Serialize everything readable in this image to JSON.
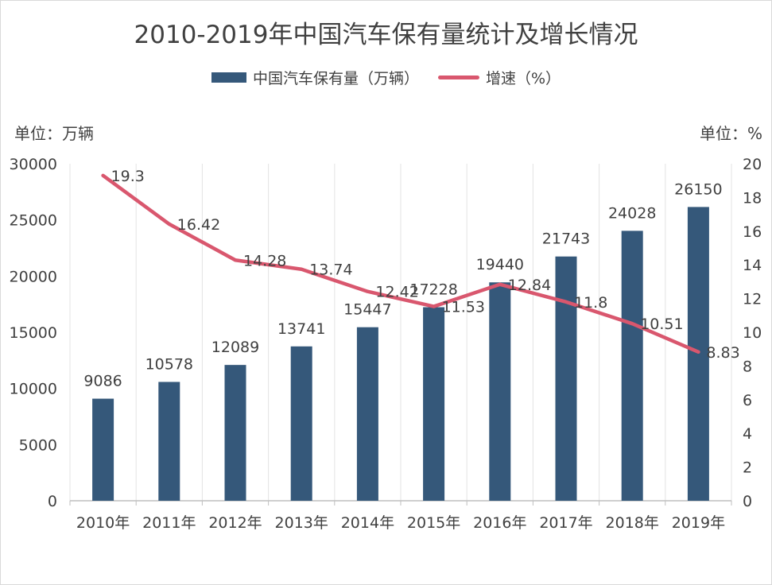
{
  "chart_data": {
    "type": "bar",
    "title": "2010-2019年中国汽车保有量统计及增长情况",
    "categories": [
      "2010年",
      "2011年",
      "2012年",
      "2013年",
      "2014年",
      "2015年",
      "2016年",
      "2017年",
      "2018年",
      "2019年"
    ],
    "series": [
      {
        "name": "中国汽车保有量（万辆）",
        "type": "bar",
        "axis": "left",
        "color": "#35587a",
        "values": [
          9086,
          10578,
          12089,
          13741,
          15447,
          17228,
          19440,
          21743,
          24028,
          26150
        ]
      },
      {
        "name": "增速（%）",
        "type": "line",
        "axis": "right",
        "color": "#d9576e",
        "values": [
          19.3,
          16.42,
          14.28,
          13.74,
          12.42,
          11.53,
          12.84,
          11.8,
          10.51,
          8.83
        ]
      }
    ],
    "left_axis": {
      "label": "单位：万辆",
      "min": 0,
      "max": 30000,
      "step": 5000,
      "ticks": [
        "0",
        "5000",
        "10000",
        "15000",
        "20000",
        "25000",
        "30000"
      ]
    },
    "right_axis": {
      "label": "单位：%",
      "min": 0,
      "max": 20,
      "step": 2,
      "ticks": [
        "0",
        "2",
        "4",
        "6",
        "8",
        "10",
        "12",
        "14",
        "16",
        "18",
        "20"
      ]
    },
    "bar_labels": [
      "9086",
      "10578",
      "12089",
      "13741",
      "15447",
      "17228",
      "19440",
      "21743",
      "24028",
      "26150"
    ],
    "line_labels": [
      "19.3",
      "16.42",
      "14.28",
      "13.74",
      "12.42",
      "11.53",
      "12.84",
      "11.8",
      "10.51",
      "8.83"
    ],
    "legend_position": "top"
  }
}
